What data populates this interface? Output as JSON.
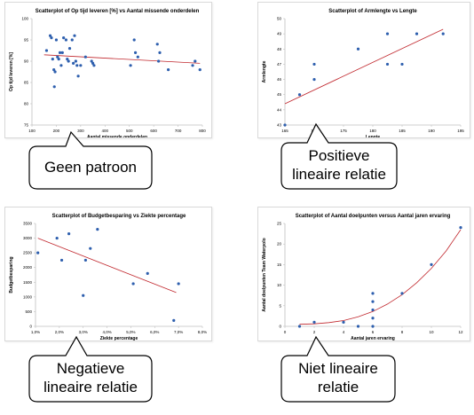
{
  "colors": {
    "point": "#2e5fae",
    "trend": "#c0262c",
    "axis": "#bfbfbf",
    "text": "#000000"
  },
  "chart_data": [
    {
      "type": "scatter",
      "title": "Scatterplot of Op tijd leveren [%] vs Aantal missende onderdelen",
      "xlabel": "Aantal missende onderdelen",
      "ylabel": "Op tijd leveren [%]",
      "xlim": [
        100,
        800
      ],
      "ylim": [
        75,
        100
      ],
      "xticks": [
        "100",
        "200",
        "300",
        "400",
        "500",
        "600",
        "700",
        "800"
      ],
      "yticks": [
        "75",
        "80",
        "85",
        "90",
        "95",
        "100"
      ],
      "points": [
        [
          160,
          92.5
        ],
        [
          175,
          96
        ],
        [
          180,
          95.5
        ],
        [
          185,
          90.5
        ],
        [
          190,
          88
        ],
        [
          192,
          84
        ],
        [
          195,
          87.5
        ],
        [
          200,
          95
        ],
        [
          205,
          91
        ],
        [
          210,
          90.5
        ],
        [
          215,
          92
        ],
        [
          220,
          89
        ],
        [
          225,
          92
        ],
        [
          230,
          95.5
        ],
        [
          240,
          95
        ],
        [
          245,
          90.5
        ],
        [
          250,
          90
        ],
        [
          255,
          93
        ],
        [
          265,
          95
        ],
        [
          270,
          89.5
        ],
        [
          275,
          96
        ],
        [
          280,
          90
        ],
        [
          285,
          89
        ],
        [
          290,
          86.5
        ],
        [
          300,
          89
        ],
        [
          320,
          91
        ],
        [
          345,
          90
        ],
        [
          350,
          89.5
        ],
        [
          355,
          89
        ],
        [
          505,
          89
        ],
        [
          520,
          95
        ],
        [
          525,
          92
        ],
        [
          535,
          91
        ],
        [
          615,
          94
        ],
        [
          620,
          90
        ],
        [
          625,
          92
        ],
        [
          660,
          88
        ],
        [
          760,
          89
        ],
        [
          770,
          90
        ],
        [
          790,
          88
        ]
      ],
      "trendline": [
        [
          150,
          91.5
        ],
        [
          790,
          89.5
        ]
      ]
    },
    {
      "type": "scatter",
      "title": "Scatterplot of Armlengte vs Lengte",
      "xlabel": "Lengte",
      "ylabel": "Armlengte",
      "xlim": [
        165,
        195
      ],
      "ylim": [
        43,
        50
      ],
      "xticks": [
        "165",
        "170",
        "175",
        "180",
        "185",
        "190",
        "195"
      ],
      "yticks": [
        "43",
        "44",
        "45",
        "46",
        "47",
        "48",
        "49",
        "50"
      ],
      "points": [
        [
          165,
          43
        ],
        [
          167.5,
          45
        ],
        [
          170,
          46
        ],
        [
          170,
          47
        ],
        [
          177.5,
          48
        ],
        [
          182.5,
          47
        ],
        [
          182.5,
          49
        ],
        [
          185,
          47
        ],
        [
          187.5,
          49
        ],
        [
          192,
          49
        ]
      ],
      "trendline": [
        [
          165,
          44.4
        ],
        [
          192,
          49.3
        ]
      ]
    },
    {
      "type": "scatter",
      "title": "Scatterplot of Budgetbesparing vs Ziekte percentage",
      "xlabel": "Ziekte percentage",
      "ylabel": "Budgetbesparing",
      "xlim": [
        1,
        8
      ],
      "ylim": [
        0,
        3500
      ],
      "xticks": [
        "1,0%",
        "2,0%",
        "3,0%",
        "4,0%",
        "5,0%",
        "6,0%",
        "7,0%",
        "8,0%"
      ],
      "yticks": [
        "0",
        "500",
        "1000",
        "1500",
        "2000",
        "2500",
        "3000",
        "3500"
      ],
      "points": [
        [
          1.1,
          2500
        ],
        [
          1.9,
          3000
        ],
        [
          2.1,
          2250
        ],
        [
          2.4,
          3150
        ],
        [
          3.0,
          1050
        ],
        [
          3.1,
          2250
        ],
        [
          3.3,
          2650
        ],
        [
          3.6,
          3300
        ],
        [
          5.1,
          1450
        ],
        [
          5.7,
          1800
        ],
        [
          6.8,
          200
        ],
        [
          7.0,
          1450
        ]
      ],
      "trendline": [
        [
          1.1,
          3000
        ],
        [
          6.9,
          1150
        ]
      ]
    },
    {
      "type": "scatter",
      "title": "Scatterplot of Aantal doelpunten versus Aantal jaren ervaring",
      "xlabel": "Aantal jaren ervaring",
      "ylabel": "Aantal doelpunten Team Waterpolo",
      "xlim": [
        0,
        12
      ],
      "ylim": [
        0,
        25
      ],
      "xticks": [
        "0",
        "2",
        "4",
        "6",
        "8",
        "10",
        "12"
      ],
      "yticks": [
        "0",
        "5",
        "10",
        "15",
        "20",
        "25"
      ],
      "points": [
        [
          1,
          0
        ],
        [
          2,
          1
        ],
        [
          4,
          1
        ],
        [
          5,
          0
        ],
        [
          6,
          0
        ],
        [
          6,
          2
        ],
        [
          6,
          4
        ],
        [
          6,
          6
        ],
        [
          6,
          8
        ],
        [
          8,
          8
        ],
        [
          10,
          15
        ],
        [
          12,
          24
        ]
      ],
      "trendline": [
        [
          1,
          0.5
        ],
        [
          2,
          0.6
        ],
        [
          3,
          0.9
        ],
        [
          4,
          1.4
        ],
        [
          5,
          2.3
        ],
        [
          6,
          3.6
        ],
        [
          7,
          5.4
        ],
        [
          8,
          7.7
        ],
        [
          9,
          10.6
        ],
        [
          10,
          14.1
        ],
        [
          11,
          18.3
        ],
        [
          12,
          23.5
        ]
      ]
    }
  ],
  "captions": [
    {
      "lines": [
        "Geen patroon"
      ]
    },
    {
      "lines": [
        "Positieve",
        "lineaire relatie"
      ]
    },
    {
      "lines": [
        "Negatieve",
        "lineaire relatie"
      ]
    },
    {
      "lines": [
        "Niet lineaire",
        "relatie"
      ]
    }
  ]
}
